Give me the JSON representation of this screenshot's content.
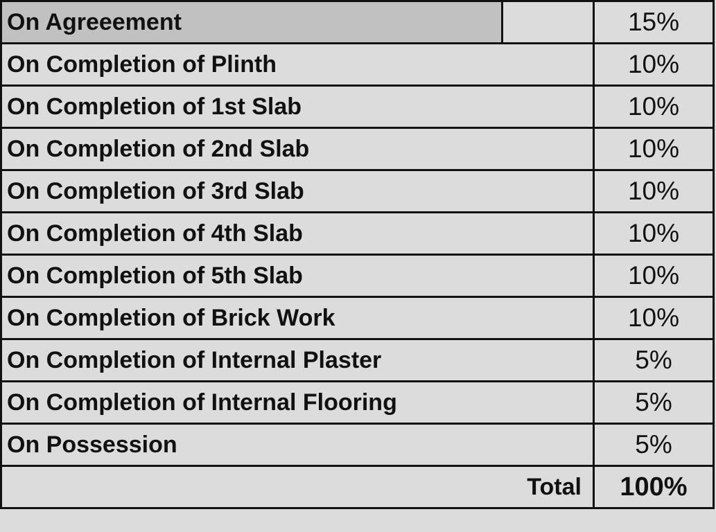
{
  "schedule": {
    "rows": [
      {
        "stage": "On Agreeement",
        "percent": "15%"
      },
      {
        "stage": "On Completion of Plinth",
        "percent": "10%"
      },
      {
        "stage": "On Completion of 1st Slab",
        "percent": "10%"
      },
      {
        "stage": "On Completion of 2nd Slab",
        "percent": "10%"
      },
      {
        "stage": "On Completion of 3rd Slab",
        "percent": "10%"
      },
      {
        "stage": "On Completion of 4th Slab",
        "percent": "10%"
      },
      {
        "stage": "On Completion of 5th Slab",
        "percent": "10%"
      },
      {
        "stage": "On Completion of Brick Work",
        "percent": "10%"
      },
      {
        "stage": "On Completion of Internal Plaster",
        "percent": "5%"
      },
      {
        "stage": "On Completion of Internal Flooring",
        "percent": "5%"
      },
      {
        "stage": "On Possession",
        "percent": "5%"
      }
    ],
    "total_label": "Total",
    "total_value": "100%"
  },
  "colors": {
    "background": "#dcdcdc",
    "highlight": "#c1c1c1",
    "border": "#111111"
  }
}
